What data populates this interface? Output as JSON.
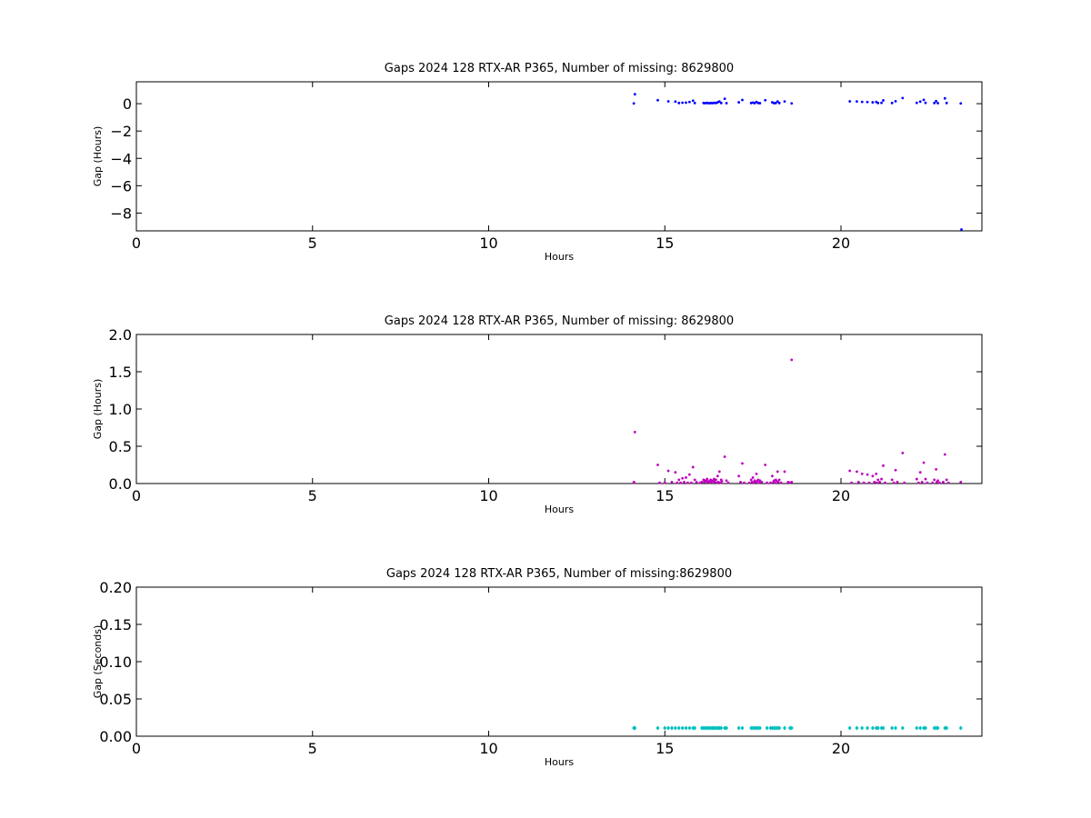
{
  "chart_data": [
    {
      "type": "scatter",
      "title": "Gaps 2024 128 RTX-AR  P365, Number of missing: 8629800",
      "xlabel": "Hours",
      "ylabel": "Gap (Hours)",
      "xlim": [
        0,
        24
      ],
      "ylim": [
        -9.3,
        1.6
      ],
      "xticks": [
        0,
        5,
        10,
        15,
        20
      ],
      "yticks": [
        0,
        -2,
        -4,
        -6,
        -8
      ],
      "grid": false,
      "color": "#0000ff",
      "marker": "dot",
      "x": [
        14.12,
        14.15,
        14.8,
        15.1,
        15.3,
        15.4,
        15.5,
        15.6,
        15.7,
        15.8,
        15.85,
        16.1,
        16.15,
        16.2,
        16.25,
        16.3,
        16.35,
        16.4,
        16.45,
        16.5,
        16.55,
        16.6,
        16.7,
        16.75,
        17.1,
        17.2,
        17.45,
        17.5,
        17.55,
        17.6,
        17.65,
        17.7,
        17.85,
        18.05,
        18.1,
        18.15,
        18.2,
        18.25,
        18.4,
        18.6,
        20.25,
        20.45,
        20.6,
        20.75,
        20.9,
        21.0,
        21.05,
        21.15,
        21.2,
        21.45,
        21.55,
        21.75,
        22.15,
        22.25,
        22.35,
        22.4,
        22.65,
        22.7,
        22.75,
        22.95,
        23.0,
        23.4,
        23.42
      ],
      "y": [
        0.02,
        0.69,
        0.25,
        0.17,
        0.15,
        0.05,
        0.07,
        0.08,
        0.12,
        0.22,
        0.05,
        0.05,
        0.04,
        0.06,
        0.03,
        0.05,
        0.04,
        0.06,
        0.05,
        0.1,
        0.16,
        0.05,
        0.36,
        0.04,
        0.1,
        0.27,
        0.05,
        0.08,
        0.04,
        0.13,
        0.05,
        0.04,
        0.25,
        0.1,
        0.04,
        0.05,
        0.16,
        0.05,
        0.16,
        0.02,
        0.17,
        0.16,
        0.13,
        0.12,
        0.1,
        0.13,
        0.05,
        0.06,
        0.24,
        0.05,
        0.18,
        0.41,
        0.06,
        0.15,
        0.28,
        0.06,
        0.05,
        0.19,
        0.04,
        0.39,
        0.05,
        0.02,
        -9.2
      ]
    },
    {
      "type": "scatter",
      "title": "Gaps 2024 128 RTX-AR  P365, Number of missing: 8629800",
      "xlabel": "Hours",
      "ylabel": "Gap (Hours)",
      "xlim": [
        0,
        24
      ],
      "ylim": [
        0,
        2.0
      ],
      "xticks": [
        0,
        5,
        10,
        15,
        20
      ],
      "yticks": [
        0.0,
        0.5,
        1.0,
        1.5,
        2.0
      ],
      "ytick_labels": [
        "0.0",
        "0.5",
        "1.0",
        "1.5",
        "2.0"
      ],
      "grid": false,
      "color": "#bf00bf",
      "marker": "dot",
      "x": [
        14.12,
        14.15,
        14.8,
        15.1,
        15.3,
        15.4,
        15.5,
        15.6,
        15.7,
        15.8,
        15.85,
        16.1,
        16.15,
        16.2,
        16.25,
        16.3,
        16.35,
        16.4,
        16.45,
        16.5,
        16.55,
        16.6,
        16.7,
        16.75,
        17.1,
        17.2,
        17.45,
        17.5,
        17.55,
        17.6,
        17.65,
        17.7,
        17.85,
        18.05,
        18.1,
        18.15,
        18.2,
        18.25,
        18.4,
        18.6,
        20.25,
        20.45,
        20.6,
        20.75,
        20.9,
        21.0,
        21.05,
        21.15,
        21.2,
        21.45,
        21.55,
        21.75,
        22.15,
        22.25,
        22.35,
        22.4,
        22.65,
        22.7,
        22.75,
        22.95,
        23.0,
        23.4,
        14.13,
        14.85,
        15.0,
        15.2,
        15.35,
        15.45,
        15.55,
        15.65,
        15.75,
        15.9,
        16.0,
        16.05,
        16.12,
        16.18,
        16.22,
        16.28,
        16.32,
        16.38,
        16.42,
        16.48,
        16.52,
        16.58,
        16.62,
        16.8,
        17.15,
        17.25,
        17.4,
        17.48,
        17.52,
        17.58,
        17.62,
        17.68,
        17.75,
        17.9,
        18.0,
        18.08,
        18.12,
        18.18,
        18.22,
        18.3,
        18.5,
        18.55,
        20.3,
        20.5,
        20.65,
        20.8,
        20.95,
        21.02,
        21.1,
        21.25,
        21.5,
        21.6,
        21.8,
        22.2,
        22.3,
        22.45,
        22.6,
        22.72,
        22.8,
        22.9,
        23.05,
        18.6
      ],
      "y": [
        0.02,
        0.69,
        0.25,
        0.17,
        0.15,
        0.05,
        0.07,
        0.08,
        0.12,
        0.22,
        0.05,
        0.05,
        0.04,
        0.06,
        0.03,
        0.05,
        0.04,
        0.06,
        0.05,
        0.1,
        0.16,
        0.05,
        0.36,
        0.04,
        0.1,
        0.27,
        0.05,
        0.08,
        0.04,
        0.13,
        0.05,
        0.04,
        0.25,
        0.1,
        0.04,
        0.05,
        0.16,
        0.05,
        0.16,
        0.02,
        0.17,
        0.16,
        0.13,
        0.12,
        0.1,
        0.13,
        0.05,
        0.06,
        0.24,
        0.05,
        0.18,
        0.41,
        0.06,
        0.15,
        0.28,
        0.06,
        0.05,
        0.19,
        0.04,
        0.39,
        0.05,
        0.02,
        0.01,
        0.01,
        0.01,
        0.02,
        0.01,
        0.01,
        0.02,
        0.01,
        0.01,
        0.02,
        0.01,
        0.02,
        0.02,
        0.03,
        0.02,
        0.01,
        0.02,
        0.03,
        0.02,
        0.01,
        0.02,
        0.01,
        0.03,
        0.01,
        0.02,
        0.01,
        0.01,
        0.02,
        0.01,
        0.02,
        0.03,
        0.01,
        0.02,
        0.01,
        0.01,
        0.02,
        0.01,
        0.03,
        0.02,
        0.01,
        0.02,
        0.01,
        0.01,
        0.02,
        0.01,
        0.01,
        0.02,
        0.01,
        0.02,
        0.01,
        0.01,
        0.02,
        0.01,
        0.01,
        0.02,
        0.01,
        0.01,
        0.02,
        0.01,
        0.02,
        0.01,
        1.66
      ]
    },
    {
      "type": "scatter",
      "title": "Gaps 2024 128 RTX-AR  P365, Number of missing:8629800",
      "xlabel": "Hours",
      "ylabel": "Gap (Seconds)",
      "xlim": [
        0,
        24
      ],
      "ylim": [
        0,
        0.2
      ],
      "xticks": [
        0,
        5,
        10,
        15,
        20
      ],
      "yticks": [
        0.0,
        0.05,
        0.1,
        0.15,
        0.2
      ],
      "ytick_labels": [
        "0.00",
        "0.05",
        "0.10",
        "0.15",
        "0.20"
      ],
      "grid": false,
      "color": "#00bfbf",
      "marker": "diamond",
      "x": [
        14.12,
        14.15,
        14.8,
        15.0,
        15.1,
        15.2,
        15.3,
        15.4,
        15.5,
        15.6,
        15.7,
        15.8,
        15.85,
        16.05,
        16.1,
        16.15,
        16.2,
        16.25,
        16.3,
        16.35,
        16.4,
        16.45,
        16.5,
        16.55,
        16.6,
        16.7,
        16.75,
        17.1,
        17.2,
        17.45,
        17.5,
        17.55,
        17.6,
        17.65,
        17.7,
        17.9,
        18.0,
        18.05,
        18.1,
        18.15,
        18.2,
        18.25,
        18.4,
        18.55,
        18.6,
        20.25,
        20.45,
        20.6,
        20.75,
        20.9,
        21.0,
        21.05,
        21.15,
        21.2,
        21.45,
        21.55,
        21.75,
        22.15,
        22.25,
        22.35,
        22.4,
        22.65,
        22.7,
        22.75,
        22.95,
        23.0,
        23.4
      ],
      "y": [
        0.011,
        0.011,
        0.011,
        0.011,
        0.011,
        0.011,
        0.011,
        0.011,
        0.011,
        0.011,
        0.011,
        0.011,
        0.011,
        0.011,
        0.011,
        0.011,
        0.011,
        0.011,
        0.011,
        0.011,
        0.011,
        0.011,
        0.011,
        0.011,
        0.011,
        0.011,
        0.011,
        0.011,
        0.011,
        0.011,
        0.011,
        0.011,
        0.011,
        0.011,
        0.011,
        0.011,
        0.011,
        0.011,
        0.011,
        0.011,
        0.011,
        0.011,
        0.011,
        0.011,
        0.011,
        0.011,
        0.011,
        0.011,
        0.011,
        0.011,
        0.011,
        0.011,
        0.011,
        0.011,
        0.011,
        0.011,
        0.011,
        0.011,
        0.011,
        0.011,
        0.011,
        0.011,
        0.011,
        0.011,
        0.011,
        0.011,
        0.011
      ]
    }
  ]
}
